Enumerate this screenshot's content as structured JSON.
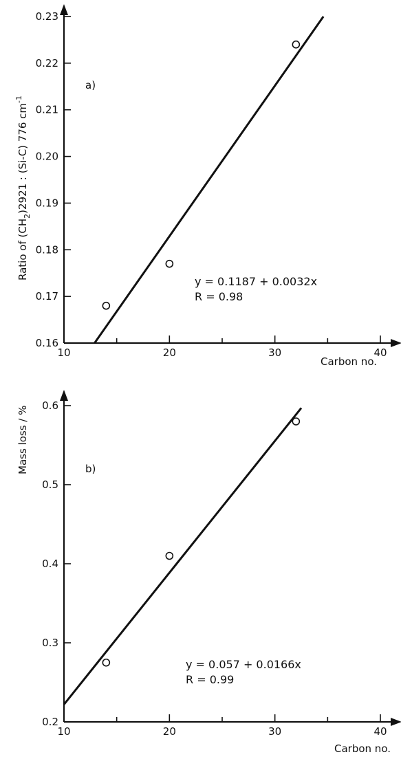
{
  "chart_data": [
    {
      "type": "scatter",
      "panel_label": "a)",
      "xlabel": "Carbon no.",
      "ylabel_parts": [
        "Ratio of (CH",
        "2",
        ")2921 : (Si-C) 776 cm",
        "-1"
      ],
      "xlim": [
        10,
        42
      ],
      "ylim": [
        0.16,
        0.23
      ],
      "x_ticks": [
        "10",
        "20",
        "30",
        "40"
      ],
      "y_ticks": [
        "0.16",
        "0.17",
        "0.18",
        "0.19",
        "0.20",
        "0.21",
        "0.22",
        "0.23"
      ],
      "x_tick_values": [
        10,
        20,
        30,
        40
      ],
      "x_minor_values": [
        15,
        25,
        35
      ],
      "y_tick_values": [
        0.16,
        0.17,
        0.18,
        0.19,
        0.2,
        0.21,
        0.22,
        0.23
      ],
      "points": [
        {
          "x": 14,
          "y": 0.168
        },
        {
          "x": 20,
          "y": 0.177
        },
        {
          "x": 32,
          "y": 0.224
        }
      ],
      "fit_line": {
        "x": [
          12.9,
          34.6
        ],
        "y": [
          0.16,
          0.23
        ]
      },
      "equation": "y = 0.1187 + 0.0032x",
      "r_value": "R = 0.98"
    },
    {
      "type": "scatter",
      "panel_label": "b)",
      "xlabel": "Carbon no.",
      "ylabel_parts": [
        "Mass loss / %",
        "",
        "",
        ""
      ],
      "xlim": [
        10,
        42
      ],
      "ylim": [
        0.2,
        0.65
      ],
      "x_ticks": [
        "10",
        "20",
        "30",
        "40"
      ],
      "y_ticks": [
        "0.2",
        "0.3",
        "0.4",
        "0.5",
        "0.6"
      ],
      "x_tick_values": [
        10,
        20,
        30,
        40
      ],
      "x_minor_values": [
        15,
        25,
        35
      ],
      "y_tick_values": [
        0.2,
        0.3,
        0.4,
        0.5,
        0.6
      ],
      "points": [
        {
          "x": 14,
          "y": 0.275
        },
        {
          "x": 20,
          "y": 0.41
        },
        {
          "x": 32,
          "y": 0.58
        }
      ],
      "fit_line": {
        "x": [
          10,
          32.5
        ],
        "y": [
          0.222,
          0.597
        ]
      },
      "equation": "y = 0.057 + 0.0166x",
      "r_value": "R = 0.99"
    }
  ]
}
